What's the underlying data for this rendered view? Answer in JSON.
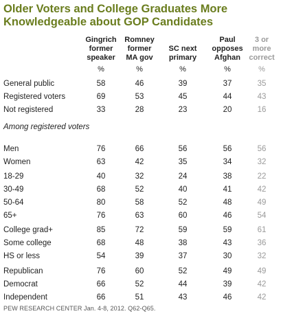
{
  "title_line1": "Older Voters and College Graduates More",
  "title_line2": "Knowledgeable about GOP Candidates",
  "columns": [
    {
      "l1": "Gingrich",
      "l2": "former",
      "l3": "speaker"
    },
    {
      "l1": "Romney",
      "l2": "former",
      "l3": "MA gov"
    },
    {
      "l1": "",
      "l2": "SC next",
      "l3": "primary"
    },
    {
      "l1": "Paul",
      "l2": "opposes",
      "l3": "Afghan"
    },
    {
      "l1": "3 or",
      "l2": "more",
      "l3": "correct"
    }
  ],
  "pct": "%",
  "section_label": "Among registered voters",
  "rows": [
    {
      "label": "General public",
      "v": [
        "58",
        "46",
        "39",
        "37",
        "35"
      ]
    },
    {
      "label": "Registered voters",
      "v": [
        "69",
        "53",
        "45",
        "44",
        "43"
      ]
    },
    {
      "label": "Not registered",
      "v": [
        "33",
        "28",
        "23",
        "20",
        "16"
      ]
    },
    {
      "label": "Men",
      "v": [
        "76",
        "66",
        "56",
        "56",
        "56"
      ]
    },
    {
      "label": "Women",
      "v": [
        "63",
        "42",
        "35",
        "34",
        "32"
      ]
    },
    {
      "label": "18-29",
      "v": [
        "40",
        "32",
        "24",
        "38",
        "22"
      ]
    },
    {
      "label": "30-49",
      "v": [
        "68",
        "52",
        "40",
        "41",
        "42"
      ]
    },
    {
      "label": "50-64",
      "v": [
        "80",
        "58",
        "52",
        "48",
        "49"
      ]
    },
    {
      "label": "65+",
      "v": [
        "76",
        "63",
        "60",
        "46",
        "54"
      ]
    },
    {
      "label": "College grad+",
      "v": [
        "85",
        "72",
        "59",
        "59",
        "61"
      ]
    },
    {
      "label": "Some college",
      "v": [
        "68",
        "48",
        "38",
        "43",
        "36"
      ]
    },
    {
      "label": "HS or less",
      "v": [
        "54",
        "39",
        "37",
        "30",
        "32"
      ]
    },
    {
      "label": "Republican",
      "v": [
        "76",
        "60",
        "52",
        "49",
        "49"
      ]
    },
    {
      "label": "Democrat",
      "v": [
        "66",
        "52",
        "44",
        "39",
        "42"
      ]
    },
    {
      "label": "Independent",
      "v": [
        "66",
        "51",
        "43",
        "46",
        "42"
      ]
    }
  ],
  "footer": "PEW RESEARCH CENTER Jan. 4-8, 2012. Q62-Q65.",
  "colors": {
    "title": "#6a7d1e",
    "muted": "#9a9a9a"
  }
}
